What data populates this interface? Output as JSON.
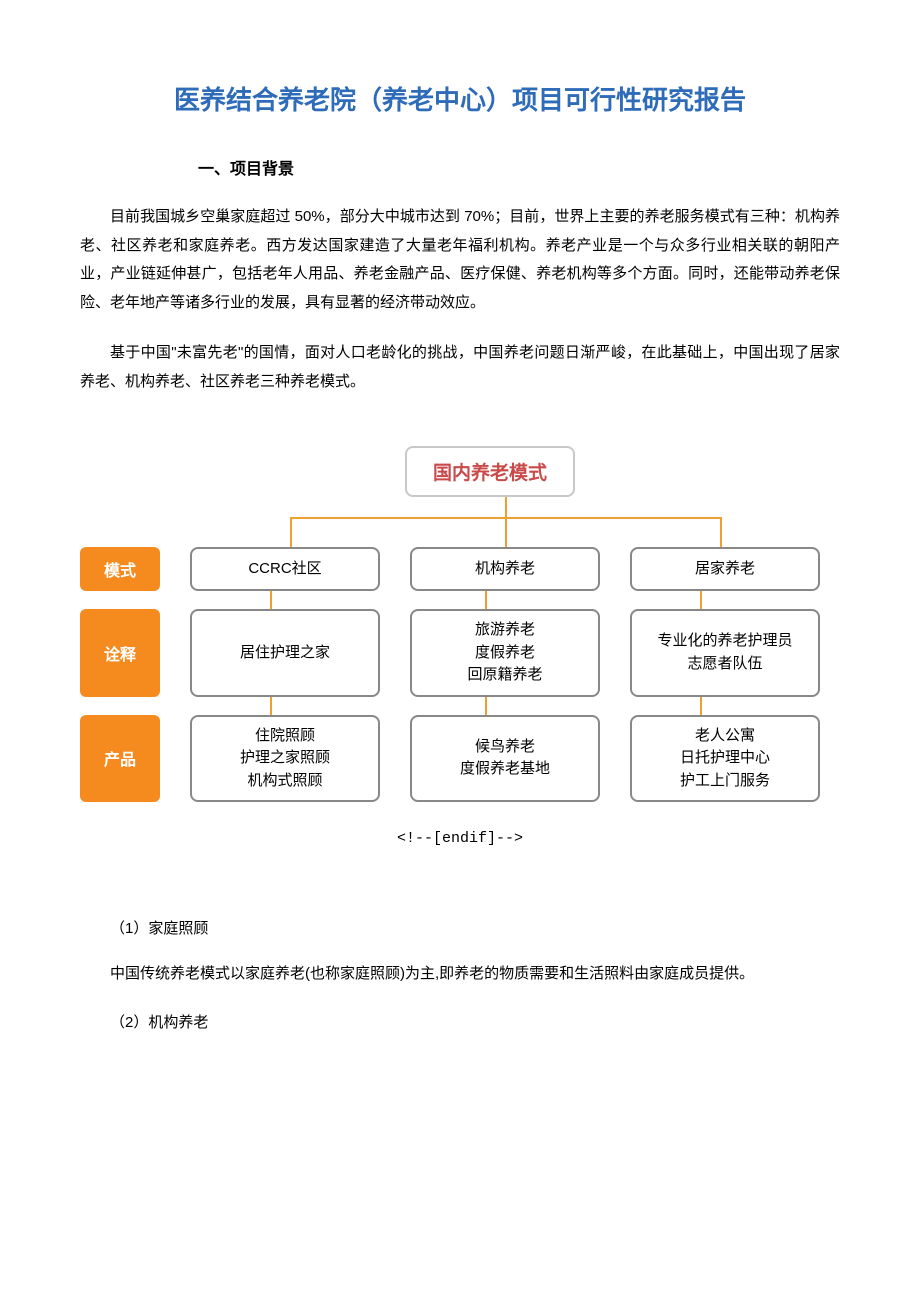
{
  "title": "医养结合养老院（养老中心）项目可行性研究报告",
  "section_heading": "一、项目背景",
  "para1": "目前我国城乡空巢家庭超过 50%，部分大中城市达到 70%；目前，世界上主要的养老服务模式有三种：机构养老、社区养老和家庭养老。西方发达国家建造了大量老年福利机构。养老产业是一个与众多行业相关联的朝阳产业，产业链延伸甚广，包括老年人用品、养老金融产品、医疗保健、养老机构等多个方面。同时，还能带动养老保险、老年地产等诸多行业的发展，具有显著的经济带动效应。",
  "para2": "基于中国\"未富先老\"的国情，面对人口老龄化的挑战，中国养老问题日渐严峻，在此基础上，中国出现了居家养老、机构养老、社区养老三种养老模式。",
  "diagram": {
    "type": "tree",
    "root_label": "国内养老模式",
    "root_color": "#c94a4a",
    "root_border_color": "#c8c8c8",
    "connector_color": "#f0a030",
    "label_bg_color": "#f58a1f",
    "label_text_color": "#ffffff",
    "cell_border_color": "#888888",
    "background_color": "#ffffff",
    "rows": [
      {
        "label": "模式",
        "cells": [
          "CCRC社区",
          "机构养老",
          "居家养老"
        ]
      },
      {
        "label": "诠释",
        "cells": [
          "居住护理之家",
          "旅游养老\n度假养老\n回原籍养老",
          "专业化的养老护理员\n志愿者队伍"
        ]
      },
      {
        "label": "产品",
        "cells": [
          "住院照顾\n护理之家照顾\n机构式照顾",
          "候鸟养老\n度假养老基地",
          "老人公寓\n日托护理中心\n护工上门服务"
        ]
      }
    ]
  },
  "endif_note": "<!--[endif]-->",
  "sub1_heading": "（1）家庭照顾",
  "sub1_body": "中国传统养老模式以家庭养老(也称家庭照顾)为主,即养老的物质需要和生活照料由家庭成员提供。",
  "sub2_heading": "（2）机构养老"
}
